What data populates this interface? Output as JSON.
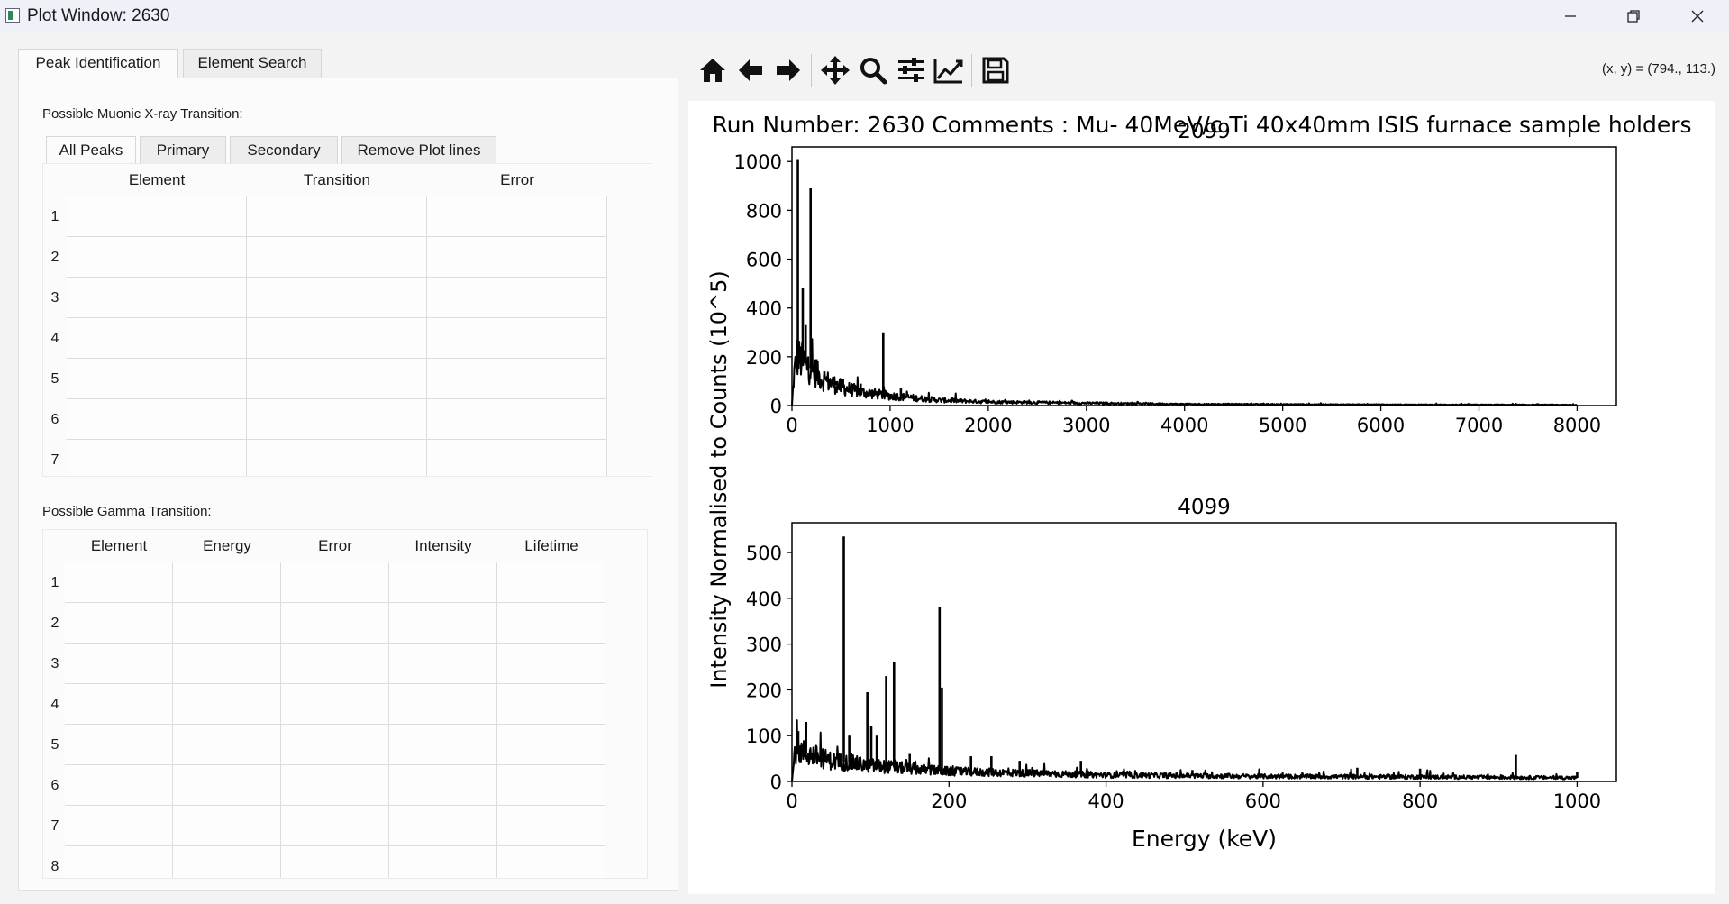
{
  "window": {
    "title": "Plot Window: 2630",
    "minimize_icon": "minimize-icon",
    "restore_icon": "restore-icon",
    "close_icon": "close-icon"
  },
  "tabs": [
    {
      "label": "Peak Identification",
      "active": true
    },
    {
      "label": "Element Search",
      "active": false
    }
  ],
  "muonic": {
    "label": "Possible Muonic X-ray Transition:",
    "subtabs": [
      {
        "label": "All Peaks",
        "active": true
      },
      {
        "label": "Primary",
        "active": false
      },
      {
        "label": "Secondary",
        "active": false
      },
      {
        "label": "Remove Plot lines",
        "active": false
      }
    ],
    "columns": [
      "Element",
      "Transition",
      "Error"
    ],
    "rows": [
      "1",
      "2",
      "3",
      "4",
      "5",
      "6",
      "7"
    ]
  },
  "gamma": {
    "label": "Possible Gamma Transition:",
    "columns": [
      "Element",
      "Energy",
      "Error",
      "Intensity",
      "Lifetime"
    ],
    "rows": [
      "1",
      "2",
      "3",
      "4",
      "5",
      "6",
      "7",
      "8"
    ]
  },
  "toolbar": {
    "icons": [
      "home-icon",
      "back-arrow-icon",
      "forward-arrow-icon",
      "pan-icon",
      "zoom-icon",
      "configure-subplots-icon",
      "edit-axis-icon",
      "save-icon"
    ]
  },
  "coords": "(x, y) = (794., 113.)",
  "chart_data": [
    {
      "type": "line",
      "suptitle": "Run Number: 2630  Comments : Mu- 40MeV/c Ti 40x40mm ISIS furnace sample holders",
      "title": "2099",
      "xlabel": "",
      "ylabel": "Intensity Normalised to Counts (10^5)",
      "xlim": [
        0,
        8400
      ],
      "ylim": [
        0,
        1060
      ],
      "xticks": [
        0,
        1000,
        2000,
        3000,
        4000,
        5000,
        6000,
        7000,
        8000
      ],
      "yticks": [
        0,
        200,
        400,
        600,
        800,
        1000
      ],
      "line_color": "#000000",
      "peaks": [
        {
          "x": 60,
          "y": 1010
        },
        {
          "x": 110,
          "y": 480
        },
        {
          "x": 140,
          "y": 330
        },
        {
          "x": 190,
          "y": 890
        },
        {
          "x": 250,
          "y": 190
        },
        {
          "x": 330,
          "y": 140
        },
        {
          "x": 450,
          "y": 100
        },
        {
          "x": 520,
          "y": 110
        },
        {
          "x": 700,
          "y": 90
        },
        {
          "x": 930,
          "y": 300
        },
        {
          "x": 1110,
          "y": 70
        },
        {
          "x": 2050,
          "y": 20
        }
      ],
      "baseline": [
        {
          "x": 0,
          "y": 0
        },
        {
          "x": 20,
          "y": 120
        },
        {
          "x": 50,
          "y": 200
        },
        {
          "x": 100,
          "y": 180
        },
        {
          "x": 200,
          "y": 150
        },
        {
          "x": 300,
          "y": 110
        },
        {
          "x": 500,
          "y": 75
        },
        {
          "x": 700,
          "y": 55
        },
        {
          "x": 1000,
          "y": 40
        },
        {
          "x": 1500,
          "y": 22
        },
        {
          "x": 2000,
          "y": 15
        },
        {
          "x": 3000,
          "y": 10
        },
        {
          "x": 4000,
          "y": 6
        },
        {
          "x": 6000,
          "y": 4
        },
        {
          "x": 8000,
          "y": 3
        }
      ]
    },
    {
      "type": "line",
      "title": "4099",
      "xlabel": "Energy (keV)",
      "ylabel": "Intensity Normalised to Counts (10^5)",
      "xlim": [
        0,
        1050
      ],
      "ylim": [
        0,
        565
      ],
      "xticks": [
        0,
        200,
        400,
        600,
        800,
        1000
      ],
      "yticks": [
        0,
        100,
        200,
        300,
        400,
        500
      ],
      "line_color": "#000000",
      "peaks": [
        {
          "x": 8,
          "y": 110
        },
        {
          "x": 18,
          "y": 130
        },
        {
          "x": 66,
          "y": 535
        },
        {
          "x": 73,
          "y": 100
        },
        {
          "x": 96,
          "y": 195
        },
        {
          "x": 101,
          "y": 120
        },
        {
          "x": 108,
          "y": 100
        },
        {
          "x": 120,
          "y": 230
        },
        {
          "x": 130,
          "y": 260
        },
        {
          "x": 150,
          "y": 60
        },
        {
          "x": 188,
          "y": 380
        },
        {
          "x": 191,
          "y": 205
        },
        {
          "x": 228,
          "y": 55
        },
        {
          "x": 254,
          "y": 55
        },
        {
          "x": 290,
          "y": 45
        },
        {
          "x": 368,
          "y": 45
        },
        {
          "x": 510,
          "y": 25
        },
        {
          "x": 720,
          "y": 30
        },
        {
          "x": 800,
          "y": 28
        },
        {
          "x": 922,
          "y": 58
        },
        {
          "x": 1000,
          "y": 20
        }
      ],
      "baseline": [
        {
          "x": 0,
          "y": 0
        },
        {
          "x": 4,
          "y": 70
        },
        {
          "x": 20,
          "y": 60
        },
        {
          "x": 50,
          "y": 45
        },
        {
          "x": 100,
          "y": 35
        },
        {
          "x": 150,
          "y": 28
        },
        {
          "x": 200,
          "y": 22
        },
        {
          "x": 300,
          "y": 18
        },
        {
          "x": 400,
          "y": 14
        },
        {
          "x": 600,
          "y": 11
        },
        {
          "x": 800,
          "y": 10
        },
        {
          "x": 1000,
          "y": 8
        }
      ]
    }
  ]
}
